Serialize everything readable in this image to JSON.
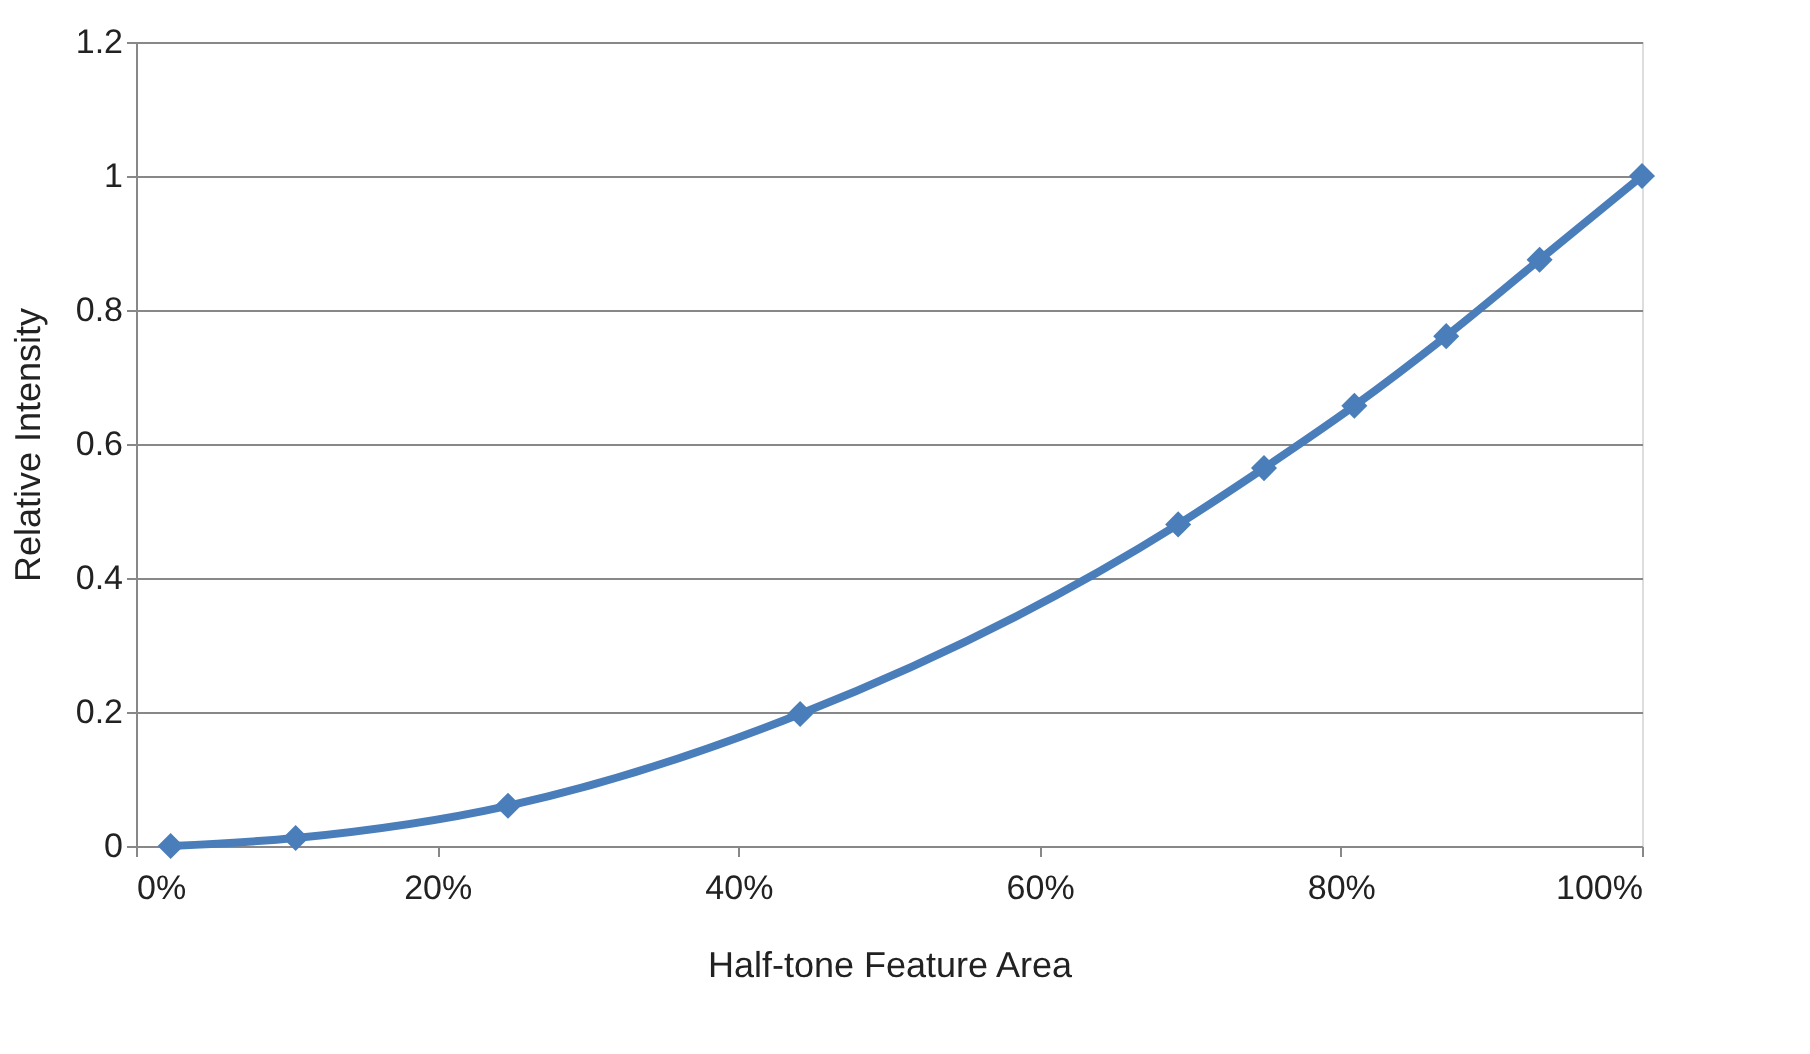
{
  "chart_data": {
    "type": "line",
    "xlabel": "Half-tone Feature Area",
    "ylabel": "Relative Intensity",
    "x": [
      0.023,
      0.106,
      0.247,
      0.441,
      0.692,
      0.749,
      0.809,
      0.87,
      0.932,
      1.0
    ],
    "series": [
      {
        "color": "#4a7ebb",
        "values": [
          0,
          0.012,
          0.06,
          0.197,
          0.48,
          0.564,
          0.657,
          0.761,
          0.875,
          1.0
        ]
      }
    ],
    "xlim": [
      0,
      1
    ],
    "xticks": [
      {
        "value": 0,
        "label": "0%"
      },
      {
        "value": 0.2,
        "label": "20%"
      },
      {
        "value": 0.4,
        "label": "40%"
      },
      {
        "value": 0.6,
        "label": "60%"
      },
      {
        "value": 0.8,
        "label": "80%"
      },
      {
        "value": 1,
        "label": "100%"
      }
    ],
    "ylim": [
      0,
      1.2
    ],
    "yticks": [
      0,
      0.2,
      0.4,
      0.6,
      0.8,
      1,
      1.2
    ],
    "grid": "y",
    "marker": "diamond",
    "line_style": "solid"
  }
}
